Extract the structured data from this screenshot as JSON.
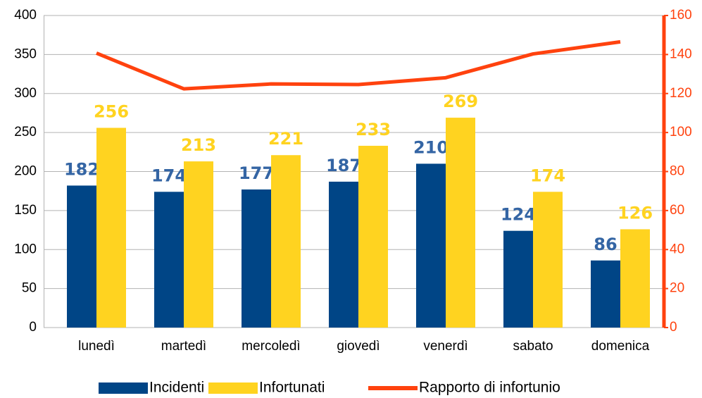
{
  "chart_data": {
    "type": "bar",
    "categories": [
      "lunedì",
      "martedì",
      "mercoledì",
      "giovedì",
      "venerdì",
      "sabato",
      "domenica"
    ],
    "series": [
      {
        "name": "Incidenti",
        "color": "#004586",
        "values": [
          182,
          174,
          177,
          187,
          210,
          124,
          86
        ]
      },
      {
        "name": "Infortunati",
        "color": "#ffd320",
        "values": [
          256,
          213,
          221,
          233,
          269,
          174,
          126
        ]
      },
      {
        "name": "Rapporto di infortunio",
        "color": "#ff420e",
        "type": "line",
        "axis": "y2",
        "values": [
          140.7,
          122.4,
          124.9,
          124.6,
          128.1,
          140.3,
          146.5
        ]
      }
    ],
    "ylim": [
      0,
      400
    ],
    "yticks": [
      0,
      50,
      100,
      150,
      200,
      250,
      300,
      350,
      400
    ],
    "y2lim": [
      0,
      160
    ],
    "y2ticks": [
      0,
      20,
      40,
      60,
      80,
      100,
      120,
      140,
      160
    ],
    "grid": true,
    "legend": "bottom"
  }
}
